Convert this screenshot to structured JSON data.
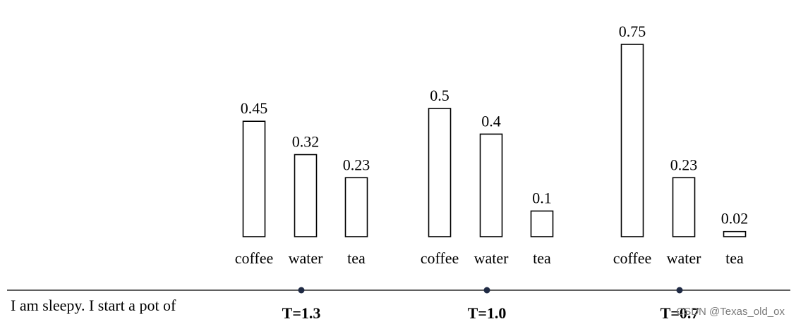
{
  "chart_data": {
    "type": "bar",
    "prompt": "I am sleepy. I start a pot of",
    "groups": [
      {
        "temperature_label": "T=1.3",
        "categories": [
          "coffee",
          "water",
          "tea"
        ],
        "values": [
          0.45,
          0.32,
          0.23
        ],
        "value_labels": [
          "0.45",
          "0.32",
          "0.23"
        ]
      },
      {
        "temperature_label": "T=1.0",
        "categories": [
          "coffee",
          "water",
          "tea"
        ],
        "values": [
          0.5,
          0.4,
          0.1
        ],
        "value_labels": [
          "0.5",
          "0.4",
          "0.1"
        ]
      },
      {
        "temperature_label": "T=0.7",
        "categories": [
          "coffee",
          "water",
          "tea"
        ],
        "values": [
          0.75,
          0.23,
          0.02
        ],
        "value_labels": [
          "0.75",
          "0.23",
          "0.02"
        ]
      }
    ],
    "ylim": [
      0,
      0.75
    ],
    "grid": false,
    "legend": "none"
  },
  "watermark": "CSDN @Texas_old_ox",
  "colors": {
    "bar_fill": "#ffffff",
    "bar_stroke": "#000000",
    "axis": "#000000",
    "dot": "#1f2a44"
  }
}
